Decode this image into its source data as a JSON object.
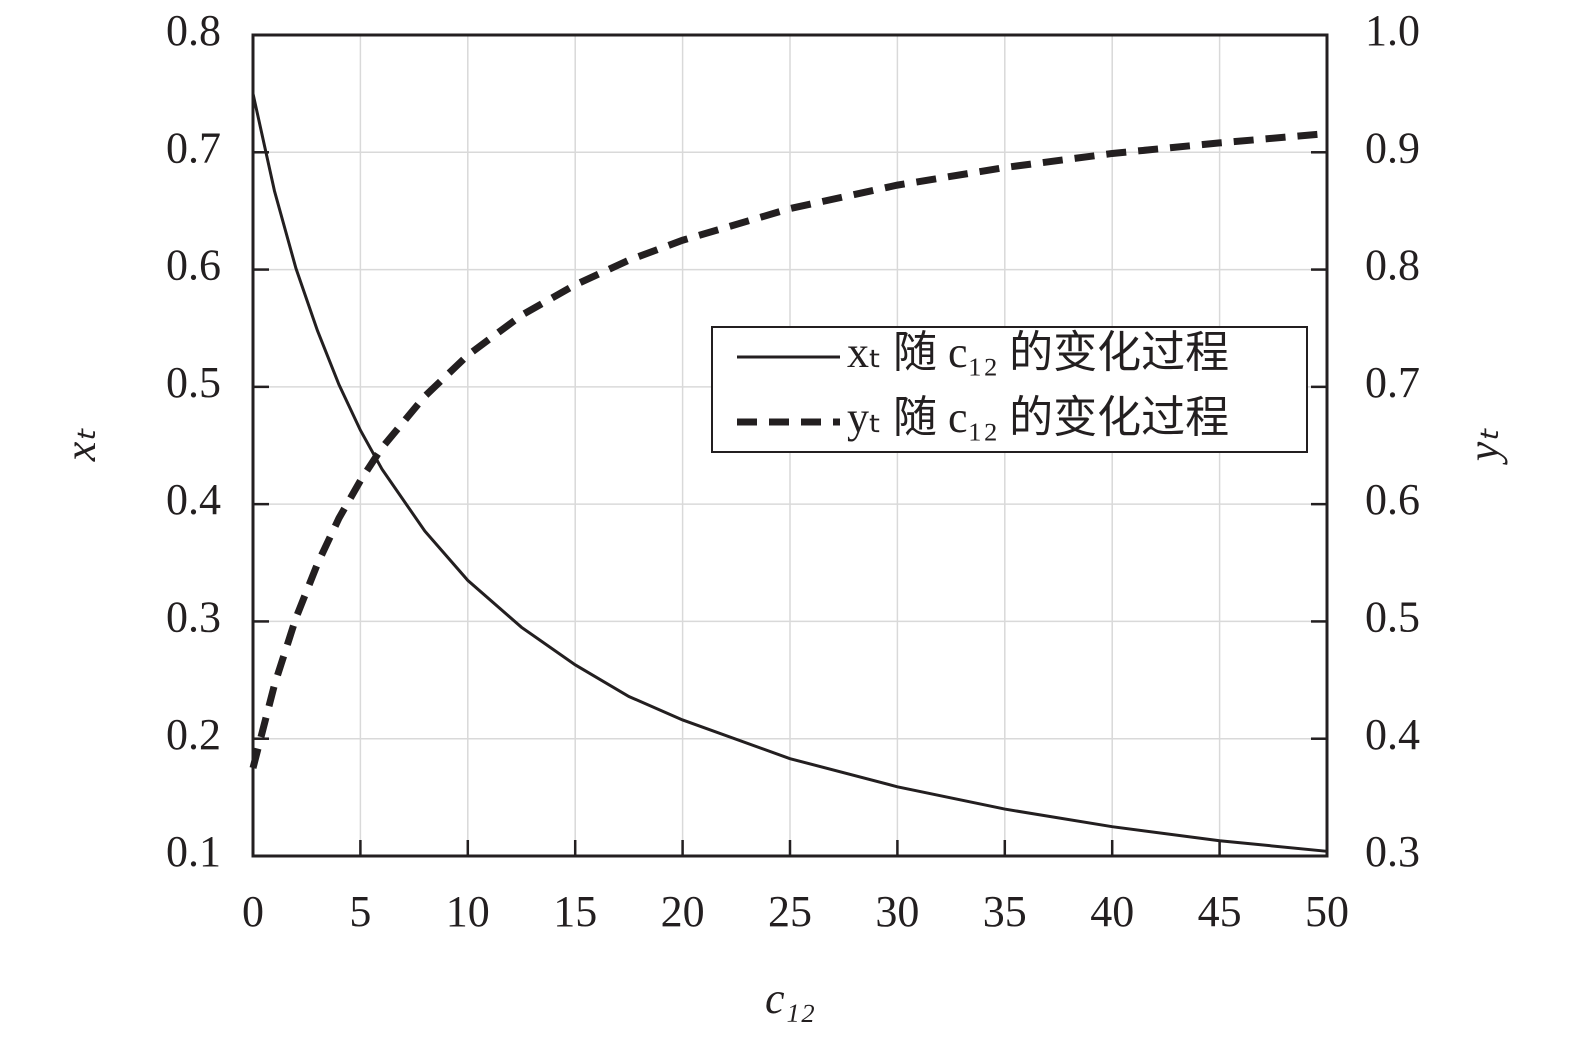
{
  "chart_data": {
    "type": "line",
    "xlabel": "c₁₂",
    "ylabel": "xₜ",
    "y2label": "yₜ",
    "x": [
      0,
      1,
      2,
      3,
      4,
      5,
      6,
      8,
      10,
      12.5,
      15,
      17.5,
      20,
      25,
      30,
      35,
      40,
      45,
      50
    ],
    "series": [
      {
        "name": "xₜ 随 c₁₂ 的变化过程",
        "color": "#231f20",
        "style": "solid",
        "values": [
          0.75,
          0.667,
          0.601,
          0.548,
          0.502,
          0.463,
          0.43,
          0.377,
          0.335,
          0.295,
          0.263,
          0.236,
          0.216,
          0.183,
          0.159,
          0.14,
          0.125,
          0.113,
          0.104
        ]
      },
      {
        "name": "yₜ 随 c₁₂ 的变化过程",
        "color": "#231f20",
        "style": "dashed",
        "axis": "y2",
        "values": [
          0.375,
          0.446,
          0.503,
          0.549,
          0.588,
          0.62,
          0.648,
          0.692,
          0.727,
          0.761,
          0.787,
          0.808,
          0.825,
          0.852,
          0.872,
          0.887,
          0.899,
          0.908,
          0.916
        ]
      }
    ],
    "xlim": [
      0,
      50
    ],
    "xticks": [
      0,
      5,
      10,
      15,
      20,
      25,
      30,
      35,
      40,
      45,
      50
    ],
    "ylim": [
      0.1,
      0.8
    ],
    "yticks": [
      0.1,
      0.2,
      0.3,
      0.4,
      0.5,
      0.6,
      0.7,
      0.8
    ],
    "y2lim": [
      0.3,
      1.0
    ],
    "y2ticks": [
      0.3,
      0.4,
      0.5,
      0.6,
      0.7,
      0.8,
      0.9,
      {
        "value": 1.0,
        "label": "1.0"
      }
    ],
    "grid": true,
    "legend": "right"
  }
}
